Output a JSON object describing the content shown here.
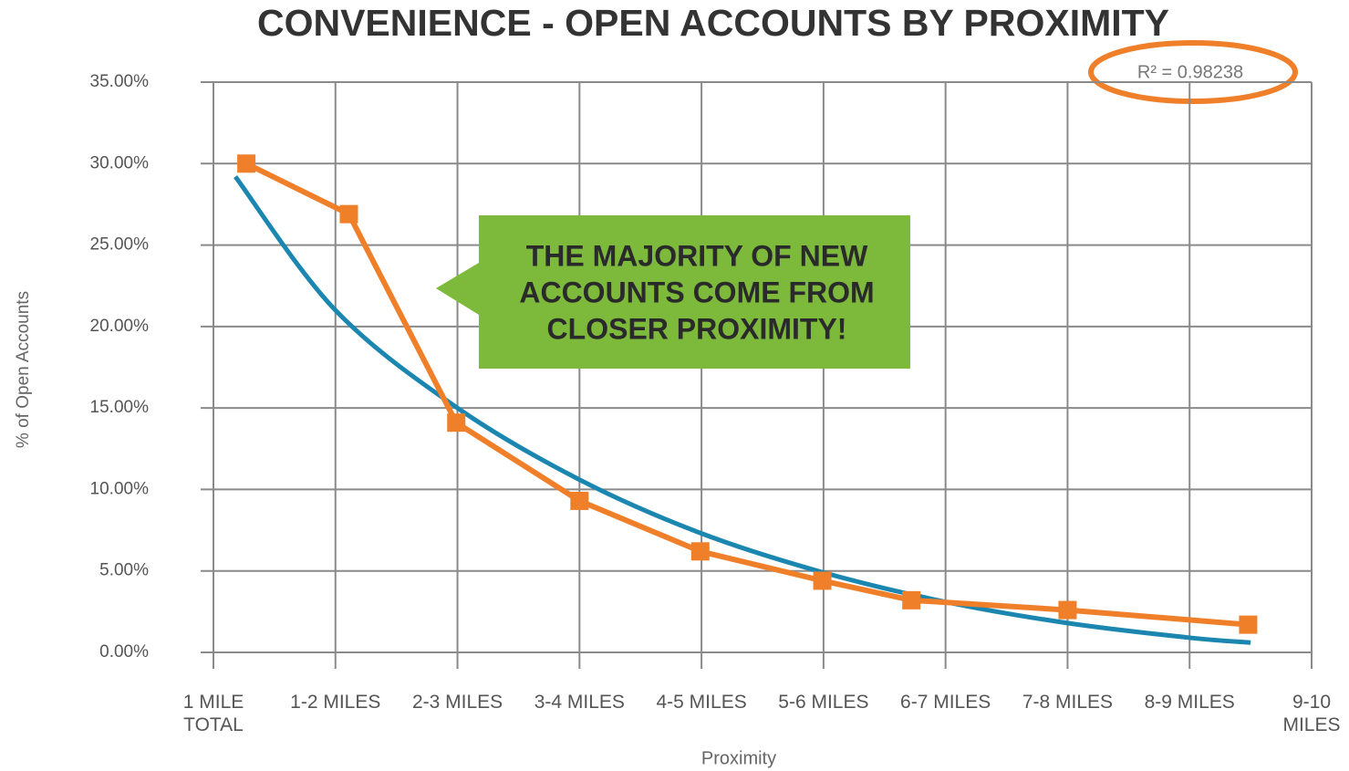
{
  "chart_data": {
    "type": "line",
    "title": "CONVENIENCE - OPEN ACCOUNTS BY PROXIMITY",
    "x_label": "Proximity",
    "y_label": "% of Open Accounts",
    "annotation": "R² = 0.98238",
    "callout": [
      "THE MAJORITY OF NEW",
      "ACCOUNTS COME FROM",
      "CLOSER PROXIMITY!"
    ],
    "xlim": [
      0,
      9
    ],
    "xticks": [
      {
        "value": 0,
        "label": "1 MILE TOTAL"
      },
      {
        "value": 1,
        "label": "1-2 MILES"
      },
      {
        "value": 2,
        "label": "2-3 MILES"
      },
      {
        "value": 3,
        "label": "3-4 MILES"
      },
      {
        "value": 4,
        "label": "4-5 MILES"
      },
      {
        "value": 5,
        "label": "5-6 MILES"
      },
      {
        "value": 6,
        "label": "6-7 MILES"
      },
      {
        "value": 7,
        "label": "7-8 MILES"
      },
      {
        "value": 8,
        "label": "8-9 MILES"
      },
      {
        "value": 9,
        "label": "9-10 MILES"
      }
    ],
    "ylim": [
      0,
      35
    ],
    "yticks": [
      {
        "value": 0,
        "label": "0.00%"
      },
      {
        "value": 5,
        "label": "5.00%"
      },
      {
        "value": 10,
        "label": "10.00%"
      },
      {
        "value": 15,
        "label": "15.00%"
      },
      {
        "value": 20,
        "label": "20.00%"
      },
      {
        "value": 25,
        "label": "25.00%"
      },
      {
        "value": 30,
        "label": "30.00%"
      },
      {
        "value": 35,
        "label": "35.00%"
      }
    ],
    "grid": true,
    "series": [
      {
        "color": "#1b87b0",
        "trend": true,
        "x": [
          0.18,
          1,
          2,
          3,
          4,
          5,
          6,
          7,
          8,
          8.5
        ],
        "values": [
          29.2,
          21,
          15,
          10.6,
          7.3,
          4.9,
          3.1,
          1.8,
          0.9,
          0.6
        ]
      },
      {
        "color": "#f07f2a",
        "markers": true,
        "x": [
          0.27,
          1.11,
          1.99,
          3.0,
          3.99,
          4.99,
          5.72,
          7.0,
          8.48
        ],
        "values": [
          30,
          26.9,
          14.1,
          9.3,
          6.2,
          4.4,
          3.2,
          2.6,
          1.7
        ]
      }
    ]
  }
}
